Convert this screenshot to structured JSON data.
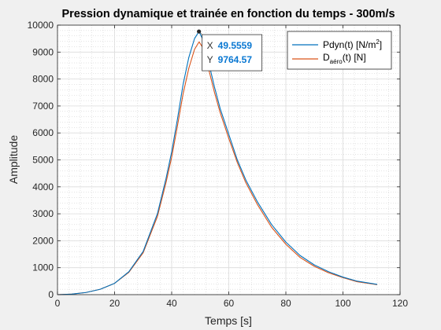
{
  "chart_data": {
    "type": "line",
    "title": "Pression dynamique et trainée en fonction du temps - 300m/s",
    "xlabel": "Temps [s]",
    "ylabel": "Amplitude",
    "xlim": [
      0,
      120
    ],
    "ylim": [
      0,
      10000
    ],
    "xticks": [
      0,
      20,
      40,
      60,
      80,
      100,
      120
    ],
    "yticks": [
      0,
      1000,
      2000,
      3000,
      4000,
      5000,
      6000,
      7000,
      8000,
      9000,
      10000
    ],
    "grid": true,
    "minor_grid": true,
    "legend_position": "top-right",
    "series": [
      {
        "name": "Pdyn(t) [N/m²]",
        "legend": {
          "base": "Pdyn(t) [N/m",
          "sup": "2",
          "tail": "]"
        },
        "color": "#0072bd",
        "x": [
          0,
          5,
          10,
          15,
          20,
          25,
          30,
          35,
          38,
          40,
          42,
          44,
          46,
          48,
          49.5559,
          51,
          53,
          55,
          57,
          60,
          63,
          66,
          70,
          75,
          80,
          85,
          90,
          95,
          100,
          105,
          112
        ],
        "y": [
          0,
          20,
          80,
          200,
          420,
          850,
          1600,
          3000,
          4300,
          5300,
          6500,
          7800,
          8800,
          9500,
          9764.57,
          9450,
          8600,
          7700,
          6900,
          5950,
          5000,
          4250,
          3450,
          2600,
          1950,
          1450,
          1100,
          850,
          650,
          500,
          380
        ]
      },
      {
        "name": "Daéro(t) [N]",
        "legend": {
          "base": "D",
          "sub": "aéro",
          "tail": "(t) [N]"
        },
        "color": "#d95319",
        "x": [
          0,
          5,
          10,
          15,
          20,
          25,
          30,
          35,
          38,
          40,
          42,
          44,
          46,
          48,
          49.6,
          51,
          53,
          55,
          57,
          60,
          63,
          66,
          70,
          75,
          80,
          85,
          90,
          95,
          100,
          105,
          112
        ],
        "y": [
          0,
          20,
          80,
          200,
          420,
          830,
          1550,
          2900,
          4150,
          5100,
          6250,
          7450,
          8400,
          9100,
          9380,
          9150,
          8350,
          7500,
          6750,
          5800,
          4900,
          4150,
          3350,
          2500,
          1870,
          1380,
          1050,
          810,
          630,
          480,
          370
        ]
      }
    ],
    "datatip": {
      "series_index": 0,
      "x": 49.5559,
      "y": 9764.57,
      "x_key": "X",
      "y_key": "Y",
      "x_text": "49.5559",
      "y_text": "9764.57"
    }
  }
}
